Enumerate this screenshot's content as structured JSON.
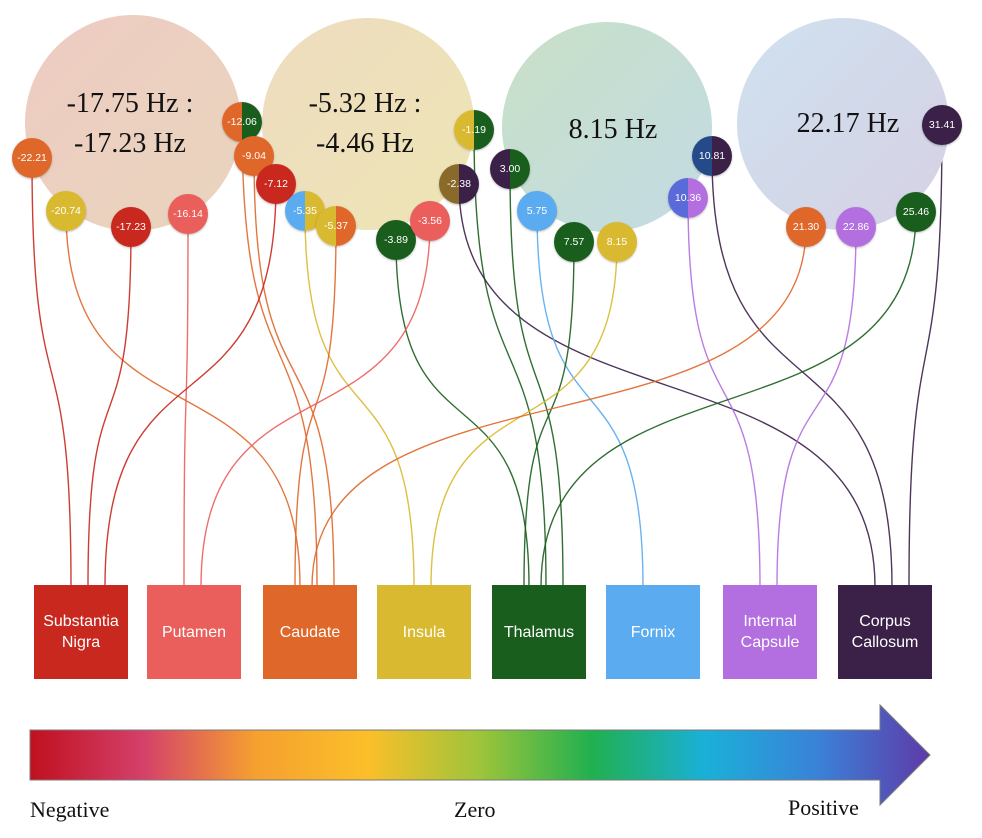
{
  "clusters": [
    {
      "id": "c1",
      "line1": "-17.75 Hz :",
      "line2": "-17.23 Hz",
      "grad": [
        "#eecbc2",
        "#e9d5bd"
      ]
    },
    {
      "id": "c2",
      "line1": "-5.32 Hz :",
      "line2": "-4.46 Hz",
      "grad": [
        "#efdcc0",
        "#ede5b4"
      ]
    },
    {
      "id": "c3",
      "line1": "8.15 Hz",
      "line2": "",
      "grad": [
        "#c8e0c6",
        "#c3dbe4"
      ]
    },
    {
      "id": "c4",
      "line1": "22.17 Hz",
      "line2": "",
      "grad": [
        "#cfe1ef",
        "#d6d1e4"
      ]
    }
  ],
  "regions": [
    {
      "key": "sn",
      "label": "Substantia Nigra",
      "color": "#c8281e"
    },
    {
      "key": "put",
      "label": "Putamen",
      "color": "#ea5f5b"
    },
    {
      "key": "cau",
      "label": "Caudate",
      "color": "#e0672a"
    },
    {
      "key": "ins",
      "label": "Insula",
      "color": "#d9b92f"
    },
    {
      "key": "thal",
      "label": "Thalamus",
      "color": "#1a5e1e"
    },
    {
      "key": "forn",
      "label": "Fornix",
      "color": "#5aabf0"
    },
    {
      "key": "ic",
      "label": "Internal Capsule",
      "color": "#b36fe0"
    },
    {
      "key": "cc",
      "label": "Corpus Callosum",
      "color": "#3b2048"
    }
  ],
  "values": [
    {
      "value": "-22.21",
      "region": "sn",
      "colors": [
        "#e0672a"
      ]
    },
    {
      "value": "-20.74",
      "region": "cau",
      "colors": [
        "#d9b92f"
      ]
    },
    {
      "value": "-17.23",
      "region": "sn",
      "colors": [
        "#c8281e"
      ]
    },
    {
      "value": "-16.14",
      "region": "put",
      "colors": [
        "#ea5f5b"
      ]
    },
    {
      "value": "-12.06",
      "region": "cau",
      "colors": [
        "#e0672a",
        "#1a5e1e"
      ]
    },
    {
      "value": "-9.04",
      "region": "cau",
      "colors": [
        "#e0672a"
      ]
    },
    {
      "value": "-7.12",
      "region": "sn",
      "colors": [
        "#c8281e"
      ]
    },
    {
      "value": "-5.35",
      "region": "ins",
      "colors": [
        "#5aabf0",
        "#d9b92f"
      ]
    },
    {
      "value": "-5.37",
      "region": "cau",
      "colors": [
        "#d9b92f",
        "#e0672a"
      ]
    },
    {
      "value": "-3.89",
      "region": "thal",
      "colors": [
        "#1a5e1e"
      ]
    },
    {
      "value": "-3.56",
      "region": "put",
      "colors": [
        "#ea5f5b"
      ]
    },
    {
      "value": "-1.19",
      "region": "thal",
      "colors": [
        "#d9b92f",
        "#1a5e1e"
      ]
    },
    {
      "value": "-2.38",
      "region": "cc",
      "colors": [
        "#8a6a2a",
        "#3b2048"
      ]
    },
    {
      "value": "3.00",
      "region": "thal",
      "colors": [
        "#3b2048",
        "#1a5e1e"
      ]
    },
    {
      "value": "5.75",
      "region": "forn",
      "colors": [
        "#5aabf0"
      ]
    },
    {
      "value": "7.57",
      "region": "thal",
      "colors": [
        "#1a5e1e"
      ]
    },
    {
      "value": "8.15",
      "region": "ins",
      "colors": [
        "#d9b92f"
      ]
    },
    {
      "value": "10.81",
      "region": "cc",
      "colors": [
        "#244a8a",
        "#3b2048"
      ]
    },
    {
      "value": "10.36",
      "region": "ic",
      "colors": [
        "#5a6ad8",
        "#b36fe0"
      ]
    },
    {
      "value": "21.30",
      "region": "cau",
      "colors": [
        "#e0672a"
      ]
    },
    {
      "value": "22.86",
      "region": "ic",
      "colors": [
        "#b36fe0"
      ]
    },
    {
      "value": "25.46",
      "region": "thal",
      "colors": [
        "#1a5e1e"
      ]
    },
    {
      "value": "31.41",
      "region": "cc",
      "colors": [
        "#3b2048"
      ]
    }
  ],
  "scale": {
    "negative": "Negative",
    "zero": "Zero",
    "positive": "Positive",
    "gradient": [
      "#c0101f",
      "#d4406a",
      "#f5a030",
      "#fbbf2a",
      "#9ec43a",
      "#20b050",
      "#1ab0d8",
      "#3a82d8",
      "#5e3aa8"
    ]
  }
}
